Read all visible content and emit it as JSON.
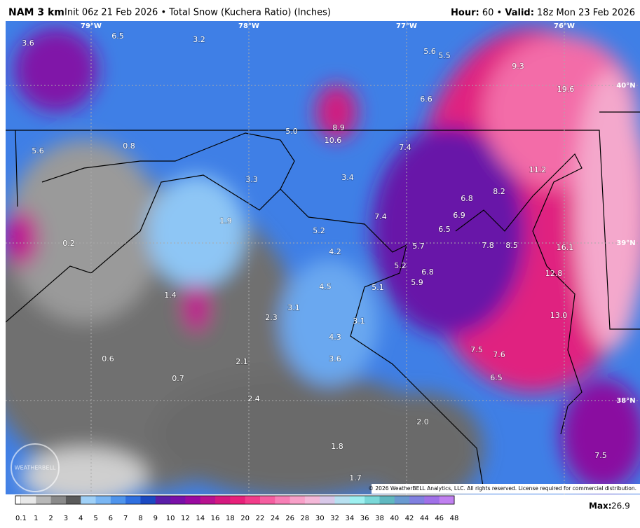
{
  "header": {
    "model": "NAM 3 km",
    "description": "Init 06z 21 Feb 2026 • Total Snow (Kuchera Ratio) (Inches)",
    "hour_label": "Hour:",
    "hour": "60 •",
    "valid_label": "Valid:",
    "valid": "18z Mon 23 Feb 2026"
  },
  "map": {
    "graticule": [
      "79°W",
      "78°W",
      "77°W",
      "76°W",
      "40°N",
      "39°N",
      "38°N"
    ],
    "labels": [
      "3.6",
      "6.5",
      "3.2",
      "5.6",
      "5.5",
      "9.3",
      "19.6",
      "6.6",
      "8.9",
      "5.0",
      "10.6",
      "5.6",
      "0.8",
      "7.4",
      "11.2",
      "3.3",
      "3.4",
      "8.2",
      "6.8",
      "6.9",
      "7.4",
      "1.9",
      "5.2",
      "6.5",
      "0.2",
      "7.8",
      "8.5",
      "16.1",
      "5.7",
      "4.2",
      "5.2",
      "6.8",
      "12.8",
      "5.9",
      "4.5",
      "5.1",
      "1.4",
      "3.1",
      "13.0",
      "2.3",
      "3.1",
      "4.3",
      "7.5",
      "7.6",
      "0.6",
      "3.6",
      "2.1",
      "0.7",
      "6.5",
      "2.4",
      "2.0",
      "1.8",
      "7.5",
      "1.7"
    ],
    "logo": "WEATHERBELL",
    "copyright": "© 2026 WeatherBELL Analytics, LLC. All rights reserved. License required for commercial distribution."
  },
  "colorbar": {
    "ticks": [
      "0.1",
      "1",
      "2",
      "3",
      "4",
      "5",
      "6",
      "7",
      "8",
      "9",
      "10",
      "12",
      "14",
      "16",
      "18",
      "20",
      "22",
      "24",
      "26",
      "28",
      "30",
      "32",
      "34",
      "36",
      "38",
      "40",
      "42",
      "44",
      "46",
      "48"
    ],
    "colors": [
      "#e8e8e8",
      "#b8b8b8",
      "#8a8a8a",
      "#5a5a5a",
      "#9fd0f7",
      "#7ab6f3",
      "#4f94ec",
      "#2f6fe0",
      "#1b49c2",
      "#5a1ea8",
      "#7a10a8",
      "#9a0aa0",
      "#b8128f",
      "#d4197f",
      "#e8207a",
      "#f23c8a",
      "#f55ea0",
      "#f77fb6",
      "#f8a0c8",
      "#f4b8d8",
      "#d8c8e8",
      "#b8e0f0",
      "#9ef0f0",
      "#7ad8d8",
      "#60b8c0",
      "#6a9ad0",
      "#8080e0",
      "#a070e8",
      "#c080f0"
    ],
    "max_label": "Max:",
    "max": "26.9"
  }
}
